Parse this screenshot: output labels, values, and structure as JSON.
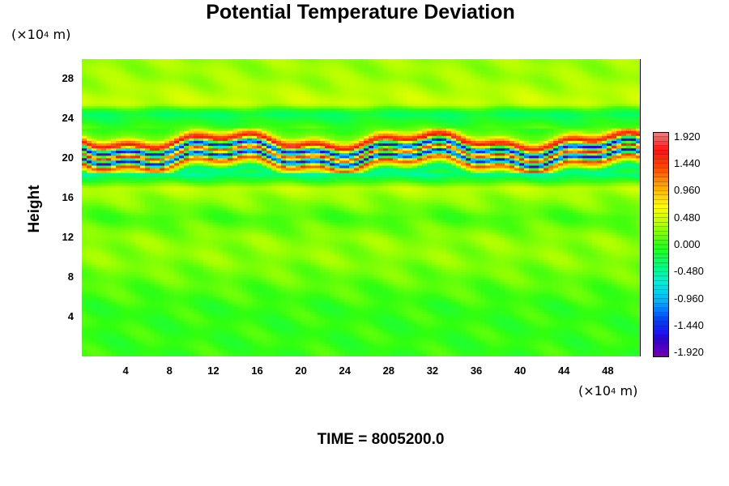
{
  "chart_data": {
    "type": "heatmap",
    "title": "Potential Temperature Deviation",
    "ylabel": "Height",
    "xlabel": "",
    "y_unit_prefix": "(×10",
    "y_unit_exp": "4",
    "y_unit_suffix": " m)",
    "x_unit_prefix": "(×10",
    "x_unit_exp": "4",
    "x_unit_suffix": " m)",
    "xlim": [
      0,
      51
    ],
    "ylim": [
      0,
      30
    ],
    "x_ticks": [
      "4",
      "8",
      "12",
      "16",
      "20",
      "24",
      "28",
      "32",
      "36",
      "40",
      "44",
      "48"
    ],
    "y_ticks": [
      "4",
      "8",
      "12",
      "16",
      "20",
      "24",
      "28"
    ],
    "colorbar": {
      "range": [
        -2.0,
        2.0
      ],
      "tick_labels": [
        "1.920",
        "1.440",
        "0.960",
        "0.480",
        "0.000",
        "-0.480",
        "-0.960",
        "-1.440",
        "-1.920"
      ],
      "tick_values": [
        1.92,
        1.44,
        0.96,
        0.48,
        0.0,
        -0.48,
        -0.96,
        -1.44,
        -1.92
      ],
      "colormap": [
        "#7a00a8",
        "#2a00e0",
        "#0044ff",
        "#00b4ff",
        "#00f0d8",
        "#00ff6a",
        "#30ff10",
        "#aaff00",
        "#ffff00",
        "#ffb000",
        "#ff5000",
        "#ff1010",
        "#f08080"
      ]
    },
    "field_description_bands": [
      {
        "y": 28,
        "value": 0.3
      },
      {
        "y": 25.5,
        "value": 0.45
      },
      {
        "y": 24.5,
        "value": -0.3
      },
      {
        "y": 22.5,
        "value": 0.2
      },
      {
        "y": 21.6,
        "value": 1.8
      },
      {
        "y": 21.0,
        "value": -1.9
      },
      {
        "y": 20.5,
        "value": 1.9
      },
      {
        "y": 20.0,
        "value": -1.9
      },
      {
        "y": 19.5,
        "value": 1.5
      },
      {
        "y": 18.5,
        "value": -0.5
      },
      {
        "y": 17,
        "value": 0.4
      },
      {
        "y": 14,
        "value": 0.05
      },
      {
        "y": 12,
        "value": 0.25
      },
      {
        "y": 10,
        "value": 0.25
      },
      {
        "y": 5,
        "value": 0.0
      }
    ]
  },
  "footer": "TIME = 8005200.0"
}
